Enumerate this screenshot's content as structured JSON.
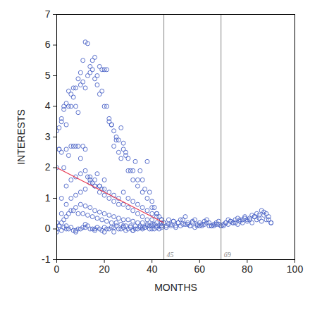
{
  "chart_data": {
    "type": "scatter",
    "x_label": "MONTHS",
    "y_label": "INTERESTS",
    "xlim": [
      0,
      100
    ],
    "xticks": [
      0,
      20,
      40,
      60,
      80,
      100
    ],
    "ylim": [
      -1,
      7
    ],
    "yticks": [
      -1,
      0,
      1,
      2,
      3,
      4,
      5,
      6,
      7
    ],
    "grid": false,
    "series": [
      {
        "type": "scatter",
        "color": "#4b63c6",
        "marker": "circle",
        "x": [
          1,
          2,
          3,
          4,
          5,
          6,
          7,
          8,
          9,
          10,
          11,
          12,
          13,
          14,
          15,
          16,
          17,
          18,
          19,
          20,
          21,
          22,
          23,
          24,
          25,
          26,
          27,
          28,
          29,
          30,
          31,
          32,
          33,
          34,
          35,
          36,
          37,
          38,
          39,
          40,
          41,
          42,
          43,
          44
        ],
        "values": [
          2.6,
          3.5,
          4.0,
          4.1,
          4.5,
          4.0,
          4.6,
          4.0,
          3.8,
          4.7,
          5.5,
          6.1,
          6.05,
          5.1,
          5.5,
          5.6,
          4.7,
          5.3,
          4.5,
          5.2,
          5.2,
          3.6,
          3.4,
          3.2,
          2.9,
          2.9,
          3.3,
          2.6,
          2.5,
          2.3,
          1.9,
          1.9,
          2.2,
          1.6,
          1.9,
          1.6,
          1.3,
          2.2,
          1.2,
          0.9,
          0.7,
          0.5,
          0.4,
          0.3
        ]
      },
      {
        "type": "scatter",
        "color": "#4b63c6",
        "marker": "circle",
        "x": [
          0,
          1,
          2,
          3,
          4,
          5,
          6,
          7,
          8,
          9,
          10,
          11,
          12,
          13,
          14,
          15,
          16,
          17,
          18,
          19,
          20,
          21,
          22,
          23,
          24,
          25,
          26,
          27,
          28,
          29,
          30,
          32,
          34,
          36,
          38,
          40,
          42,
          44
        ],
        "values": [
          3.2,
          3.3,
          3.6,
          3.9,
          3.4,
          4.0,
          4.4,
          4.3,
          4.6,
          4.9,
          5.1,
          4.8,
          4.6,
          5.0,
          5.3,
          5.2,
          4.9,
          5.0,
          4.4,
          5.2,
          4.0,
          4.0,
          3.5,
          3.4,
          2.7,
          3.0,
          2.5,
          2.3,
          2.8,
          2.4,
          1.9,
          1.6,
          1.4,
          1.2,
          1.0,
          0.7,
          0.5,
          0.3
        ]
      },
      {
        "type": "scatter",
        "color": "#4b63c6",
        "marker": "circle",
        "x": [
          0,
          1,
          2,
          3,
          4,
          5,
          6,
          7,
          8,
          9,
          10,
          11,
          12,
          13,
          14,
          15,
          16,
          17,
          18,
          19,
          20,
          22,
          24,
          26,
          28,
          30,
          32,
          34,
          36,
          38,
          40,
          42,
          44
        ],
        "values": [
          2.0,
          2.6,
          2.5,
          2.0,
          2.6,
          2.4,
          2.7,
          2.7,
          2.7,
          2.7,
          2.3,
          2.7,
          2.6,
          1.7,
          1.6,
          1.5,
          1.4,
          1.8,
          1.4,
          1.3,
          1.3,
          1.2,
          1.1,
          1.0,
          1.2,
          1.0,
          0.9,
          0.8,
          0.7,
          0.6,
          0.5,
          0.4,
          0.3
        ]
      },
      {
        "type": "scatter",
        "color": "#4b63c6",
        "marker": "circle",
        "x": [
          0,
          2,
          4,
          6,
          8,
          10,
          12,
          14,
          16,
          18,
          20,
          22,
          24,
          26,
          28,
          30,
          32,
          34,
          36,
          38,
          40,
          42,
          44
        ],
        "values": [
          0.2,
          0.5,
          0.8,
          1.0,
          1.1,
          1.2,
          1.3,
          1.5,
          1.4,
          1.2,
          1.1,
          1.0,
          0.9,
          0.8,
          0.8,
          0.7,
          0.6,
          0.5,
          0.4,
          0.3,
          0.3,
          0.2,
          0.2
        ]
      },
      {
        "type": "scatter",
        "color": "#4b63c6",
        "marker": "circle",
        "x": [
          0,
          2,
          4,
          6,
          8,
          10,
          12,
          14,
          16,
          18,
          20,
          22,
          24,
          26,
          28,
          30,
          32,
          34,
          36,
          38,
          40,
          42,
          44
        ],
        "values": [
          0.0,
          0.2,
          0.4,
          0.6,
          0.7,
          0.8,
          0.75,
          0.7,
          0.6,
          0.55,
          0.5,
          0.45,
          0.4,
          0.35,
          0.3,
          0.3,
          0.25,
          0.2,
          0.2,
          0.15,
          0.15,
          0.1,
          0.1
        ]
      },
      {
        "type": "scatter",
        "color": "#4b63c6",
        "marker": "circle",
        "x": [
          1,
          3,
          5,
          7,
          9,
          11,
          13,
          15,
          17,
          19,
          21,
          23,
          25,
          27,
          29,
          31,
          33,
          35,
          37,
          39,
          41,
          43
        ],
        "values": [
          0.1,
          0.3,
          0.5,
          0.6,
          0.5,
          0.5,
          0.45,
          0.4,
          0.35,
          0.3,
          0.25,
          0.2,
          0.2,
          0.15,
          0.1,
          0.1,
          0.1,
          0.05,
          0.05,
          0.0,
          0.0,
          0.0
        ]
      },
      {
        "type": "scatter",
        "color": "#4b63c6",
        "marker": "circle",
        "x": [
          0,
          2,
          4,
          6,
          8,
          10,
          12,
          14,
          16,
          18,
          20,
          22,
          24,
          26,
          28,
          30,
          32,
          34,
          36,
          38,
          40,
          42,
          44,
          46,
          48,
          50,
          52,
          54,
          56,
          58,
          60,
          62,
          64,
          66,
          68,
          70,
          72,
          74,
          76,
          78,
          80,
          82,
          84,
          86,
          88,
          90
        ],
        "values": [
          0.0,
          -0.05,
          0.0,
          0.05,
          -0.1,
          0.0,
          0.05,
          0.0,
          -0.05,
          0.0,
          0.05,
          0.0,
          -0.1,
          0.0,
          0.05,
          0.0,
          -0.05,
          0.0,
          0.05,
          0.1,
          0.0,
          0.05,
          0.1,
          0.05,
          0.1,
          0.05,
          0.1,
          0.15,
          0.1,
          0.05,
          0.1,
          0.15,
          0.1,
          0.1,
          0.15,
          0.1,
          0.15,
          0.2,
          0.15,
          0.2,
          0.25,
          0.2,
          0.3,
          0.25,
          0.3,
          0.2
        ]
      },
      {
        "type": "scatter",
        "color": "#4b63c6",
        "marker": "circle",
        "x": [
          1,
          3,
          5,
          7,
          9,
          11,
          13,
          15,
          17,
          19,
          21,
          23,
          25,
          27,
          29,
          31,
          33,
          35,
          37,
          39,
          41,
          43,
          45,
          47,
          49,
          51,
          53,
          55,
          57,
          59,
          61,
          63,
          65,
          67,
          69,
          71,
          73,
          75,
          77,
          79,
          81,
          83,
          85,
          87,
          89
        ],
        "values": [
          0.1,
          0.05,
          0.0,
          -0.05,
          0.0,
          0.05,
          0.1,
          0.0,
          0.05,
          -0.05,
          0.0,
          0.05,
          0.1,
          0.0,
          -0.05,
          0.05,
          0.0,
          0.1,
          0.05,
          0.1,
          0.15,
          0.1,
          0.2,
          0.15,
          0.25,
          0.2,
          0.3,
          0.15,
          0.2,
          0.1,
          0.15,
          0.2,
          0.1,
          0.15,
          0.1,
          0.2,
          0.25,
          0.2,
          0.3,
          0.35,
          0.3,
          0.4,
          0.35,
          0.45,
          0.3
        ]
      },
      {
        "type": "scatter",
        "color": "#4b63c6",
        "marker": "circle",
        "x": [
          45,
          46,
          47,
          48,
          49,
          50,
          51,
          52,
          53,
          54,
          55,
          56,
          57,
          58,
          59,
          60,
          61,
          62,
          63,
          64,
          65,
          66,
          67,
          68,
          69,
          70,
          71,
          72,
          73,
          74,
          75,
          76,
          77,
          78,
          79,
          80,
          81,
          82,
          83,
          84,
          85,
          86,
          87,
          88,
          89,
          90
        ],
        "values": [
          0.2,
          0.1,
          0.3,
          0.15,
          0.25,
          0.1,
          0.2,
          0.3,
          0.15,
          0.4,
          0.2,
          0.1,
          0.25,
          0.3,
          0.15,
          0.2,
          0.1,
          0.25,
          0.3,
          0.2,
          0.1,
          0.15,
          0.2,
          0.25,
          0.1,
          0.15,
          0.2,
          0.3,
          0.25,
          0.2,
          0.3,
          0.35,
          0.25,
          0.3,
          0.4,
          0.3,
          0.35,
          0.45,
          0.4,
          0.5,
          0.45,
          0.6,
          0.55,
          0.5,
          0.4,
          0.2
        ]
      },
      {
        "type": "scatter",
        "color": "#4b63c6",
        "marker": "circle",
        "x": [
          0,
          4,
          8,
          12,
          16,
          20,
          24,
          28,
          32,
          36,
          40,
          44
        ],
        "values": [
          -0.1,
          0.1,
          -0.05,
          0.15,
          0.0,
          -0.1,
          0.05,
          0.1,
          -0.05,
          0.0,
          0.1,
          0.05
        ]
      },
      {
        "type": "scatter",
        "color": "#4b63c6",
        "marker": "circle",
        "x": [
          2,
          4,
          6,
          8,
          10,
          12,
          14,
          16,
          18,
          20
        ],
        "values": [
          1.0,
          1.4,
          1.6,
          1.7,
          1.8,
          1.9,
          1.7,
          1.6,
          1.4,
          1.6
        ]
      },
      {
        "type": "line",
        "color": "#e8384f",
        "line_style": "solid",
        "x": [
          0,
          45
        ],
        "values": [
          2.0,
          0.2
        ]
      }
    ],
    "annotations": [
      {
        "text": "45",
        "x": 45,
        "y": -0.85
      },
      {
        "text": "69",
        "x": 69,
        "y": -0.85
      }
    ]
  }
}
